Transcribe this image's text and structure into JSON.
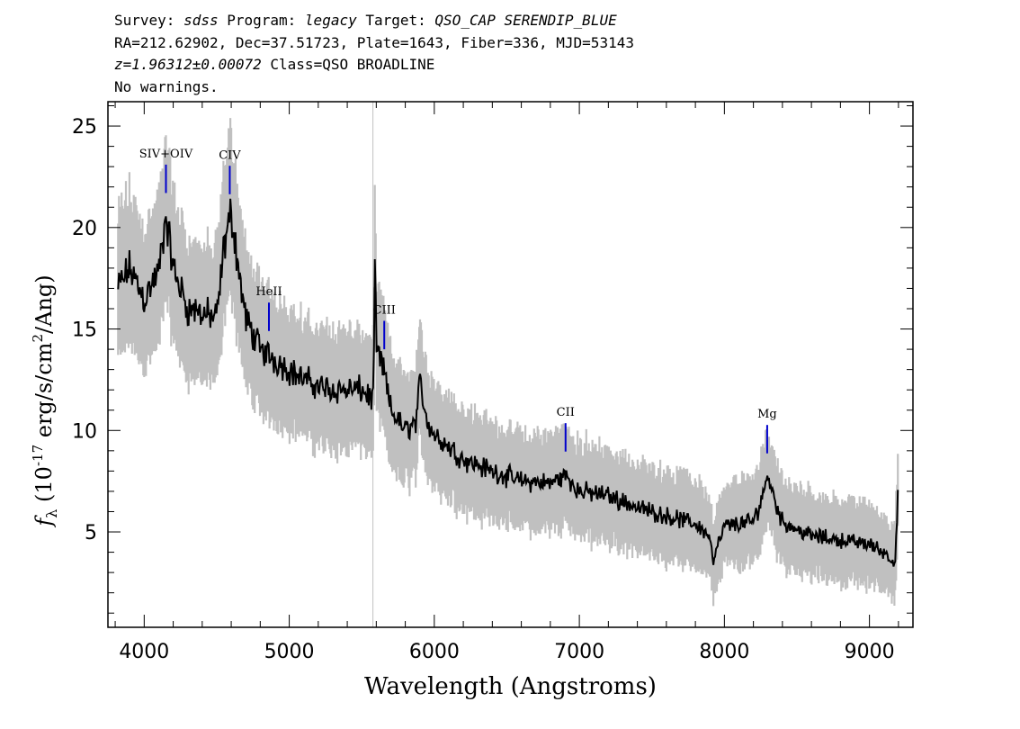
{
  "header": {
    "line1": {
      "survey_label": "Survey: ",
      "survey": "sdss",
      "program_label": " Program: ",
      "program": "legacy",
      "target_label": " Target: ",
      "target": "QSO_CAP SERENDIP_BLUE"
    },
    "line2": "RA=212.62902, Dec=37.51723, Plate=1643, Fiber=336, MJD=53143",
    "line3": {
      "redshift": "z=1.96312±0.00072",
      "class": " Class=QSO BROADLINE"
    },
    "line4": "No warnings."
  },
  "chart_data": {
    "type": "line",
    "xlabel": "Wavelength (Angstroms)",
    "ylabel": "f_λ (10^-17 erg/s/cm^2/Ang)",
    "xlim": [
      3750,
      9300
    ],
    "ylim": [
      0.3,
      26.2
    ],
    "xticks": [
      4000,
      5000,
      6000,
      7000,
      8000,
      9000
    ],
    "yticks": [
      5,
      10,
      15,
      20,
      25
    ],
    "colors": {
      "flux": "#000000",
      "error_band": "#c0c0c0",
      "line_marker": "#0000cc"
    },
    "series": [
      {
        "x": [
          3820,
          3900,
          4000,
          4100,
          4150,
          4200,
          4300,
          4400,
          4500,
          4550,
          4600,
          4650,
          4700,
          4800,
          4900,
          5000,
          5100,
          5200,
          5300,
          5400,
          5500,
          5580,
          5590,
          5600,
          5650,
          5700,
          5800,
          5880,
          5900,
          5950,
          6000,
          6200,
          6400,
          6600,
          6800,
          6900,
          7000,
          7200,
          7400,
          7600,
          7800,
          7900,
          7920,
          8000,
          8200,
          8250,
          8300,
          8350,
          8400,
          8600,
          8800,
          9000,
          9100,
          9180,
          9200
        ],
        "y": [
          17,
          18,
          16.5,
          17.8,
          20.5,
          18,
          16,
          15.8,
          15.5,
          19,
          20.8,
          18,
          15.5,
          14,
          13.5,
          13,
          12.5,
          12.2,
          12,
          12,
          12,
          11.5,
          18.5,
          14,
          13,
          11,
          10,
          10.5,
          12.5,
          10.5,
          9.8,
          8.6,
          8,
          7.5,
          7.4,
          7.8,
          7,
          6.8,
          6.2,
          5.8,
          5.4,
          4.8,
          3.5,
          5.3,
          5.5,
          6.5,
          7.8,
          6.5,
          5.5,
          4.8,
          4.6,
          4.4,
          4,
          3.5,
          8
        ]
      }
    ],
    "annotations": [
      {
        "label": "SIV+OIV",
        "x": 4150
      },
      {
        "label": "CIV",
        "x": 4590
      },
      {
        "label": "HeII",
        "x": 4860
      },
      {
        "label": "CIII",
        "x": 5655
      },
      {
        "label": "CII",
        "x": 6905
      },
      {
        "label": "Mg",
        "x": 8295
      }
    ]
  }
}
